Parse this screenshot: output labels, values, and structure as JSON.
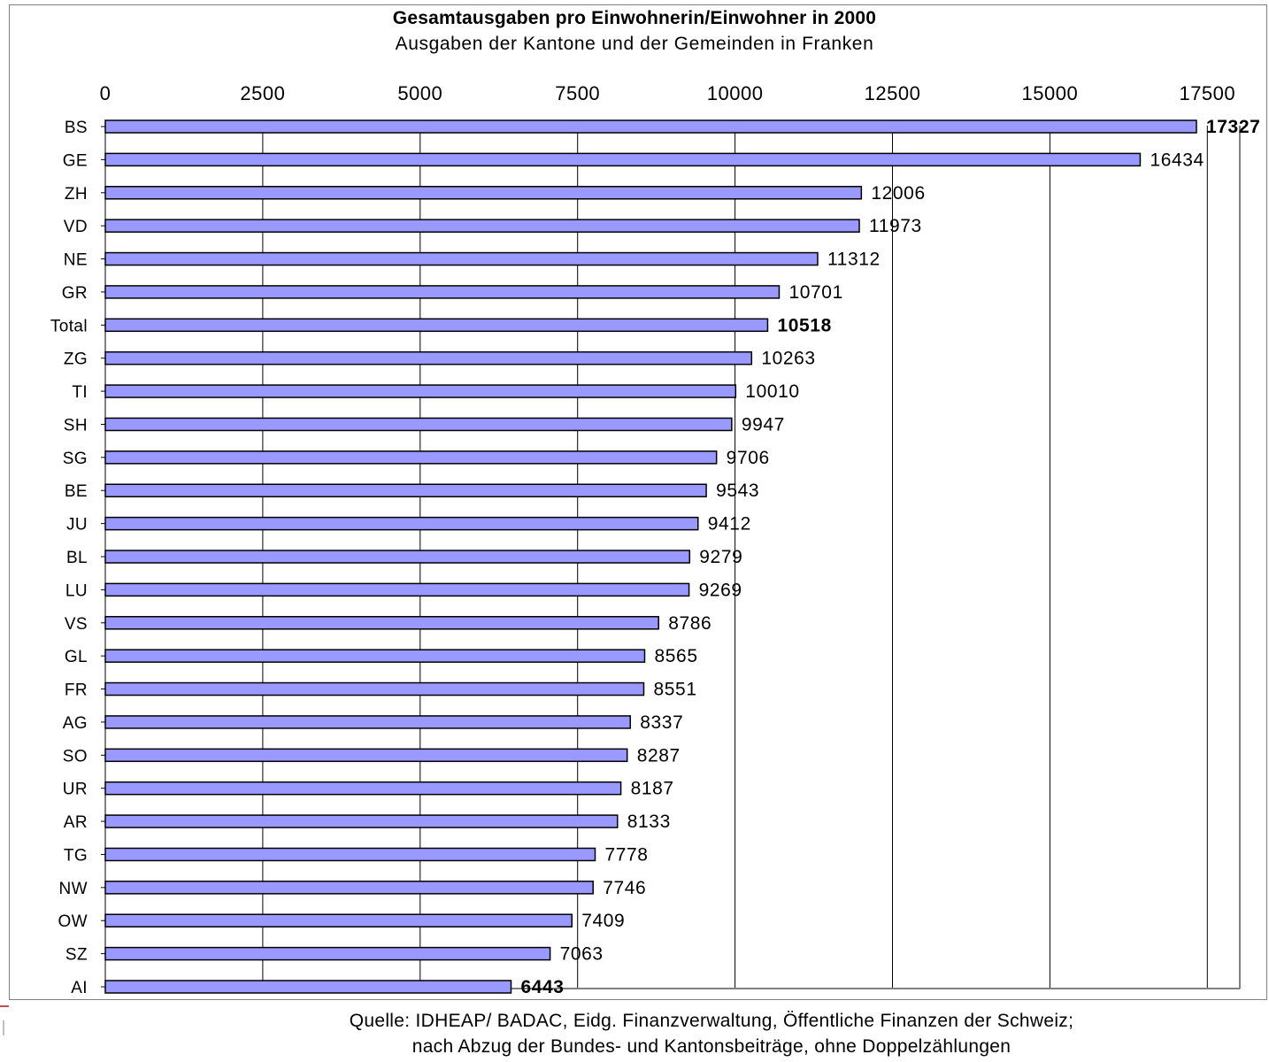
{
  "chart_data": {
    "type": "bar",
    "orientation": "horizontal",
    "title": "Gesamtausgaben pro Einwohnerin/Einwohner in 2000",
    "subtitle": "Ausgaben der Kantone und der Gemeinden in Franken",
    "categories": [
      "BS",
      "GE",
      "ZH",
      "VD",
      "NE",
      "GR",
      "Total",
      "ZG",
      "TI",
      "SH",
      "SG",
      "BE",
      "JU",
      "BL",
      "LU",
      "VS",
      "GL",
      "FR",
      "AG",
      "SO",
      "UR",
      "AR",
      "TG",
      "NW",
      "OW",
      "SZ",
      "AI"
    ],
    "values": [
      17327,
      16434,
      12006,
      11973,
      11312,
      10701,
      10518,
      10263,
      10010,
      9947,
      9706,
      9543,
      9412,
      9279,
      9269,
      8786,
      8565,
      8551,
      8337,
      8287,
      8187,
      8133,
      7778,
      7746,
      7409,
      7063,
      6443
    ],
    "value_labels": [
      "17327",
      "16434",
      "12006",
      "11973",
      "11312",
      "10701",
      "10518",
      "10263",
      "10010",
      "9947",
      "9706",
      "9543",
      "9412",
      "9279",
      "9269",
      "8786",
      "8565",
      "8551",
      "8337",
      "8287",
      "8187",
      "8133",
      "7778",
      "7746",
      "7409",
      "7063",
      "6443"
    ],
    "bold_labels": [
      "BS",
      "Total",
      "AI"
    ],
    "xticks": [
      0,
      2500,
      5000,
      7500,
      10000,
      12500,
      15000,
      17500
    ],
    "xlim": [
      0,
      17500
    ],
    "x_axis_position": "top",
    "grid": true,
    "bar_color": "#9999ff",
    "bar_edge_color": "#000000",
    "grid_color": "#000000",
    "source_line1": "Quelle: IDHEAP/ BADAC,  Eidg. Finanzverwaltung, Öffentliche Finanzen der Schweiz;",
    "source_line2": "nach Abzug der Bundes- und Kantonsbeiträge, ohne Doppelzählungen"
  }
}
